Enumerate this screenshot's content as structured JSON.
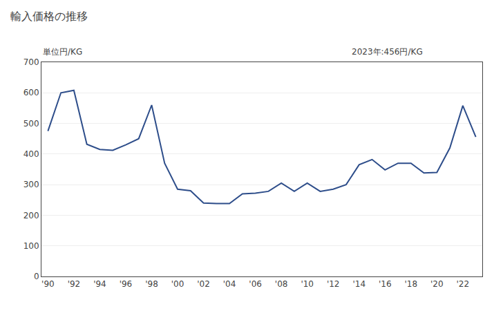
{
  "chart_data": {
    "type": "line",
    "title": "輸入価格の推移",
    "ylabel": "単位円/KG",
    "annotation": "2023年:456円/KG",
    "x": [
      1990,
      1991,
      1992,
      1993,
      1994,
      1995,
      1996,
      1997,
      1998,
      1999,
      2000,
      2001,
      2002,
      2003,
      2004,
      2005,
      2006,
      2007,
      2008,
      2009,
      2010,
      2011,
      2012,
      2013,
      2014,
      2015,
      2016,
      2017,
      2018,
      2019,
      2020,
      2021,
      2022,
      2023
    ],
    "values": [
      475,
      600,
      608,
      432,
      415,
      412,
      430,
      450,
      560,
      370,
      285,
      280,
      240,
      238,
      238,
      270,
      272,
      278,
      305,
      278,
      305,
      278,
      285,
      300,
      365,
      382,
      348,
      370,
      370,
      338,
      340,
      420,
      558,
      456
    ],
    "color": "#2d4d8a",
    "xlim": [
      1989.5,
      2023.5
    ],
    "xticks": [
      {
        "value": 1990,
        "label": "'90"
      },
      {
        "value": 1992,
        "label": "'92"
      },
      {
        "value": 1994,
        "label": "'94"
      },
      {
        "value": 1996,
        "label": "'96"
      },
      {
        "value": 1998,
        "label": "'98"
      },
      {
        "value": 2000,
        "label": "'00"
      },
      {
        "value": 2002,
        "label": "'02"
      },
      {
        "value": 2004,
        "label": "'04"
      },
      {
        "value": 2006,
        "label": "'06"
      },
      {
        "value": 2008,
        "label": "'08"
      },
      {
        "value": 2010,
        "label": "'10"
      },
      {
        "value": 2012,
        "label": "'12"
      },
      {
        "value": 2014,
        "label": "'14"
      },
      {
        "value": 2016,
        "label": "'16"
      },
      {
        "value": 2018,
        "label": "'18"
      },
      {
        "value": 2020,
        "label": "'20"
      },
      {
        "value": 2022,
        "label": "'22"
      }
    ],
    "ylim": [
      0,
      700
    ],
    "yticks": [
      0,
      100,
      200,
      300,
      400,
      500,
      600,
      700
    ],
    "grid": "y"
  }
}
